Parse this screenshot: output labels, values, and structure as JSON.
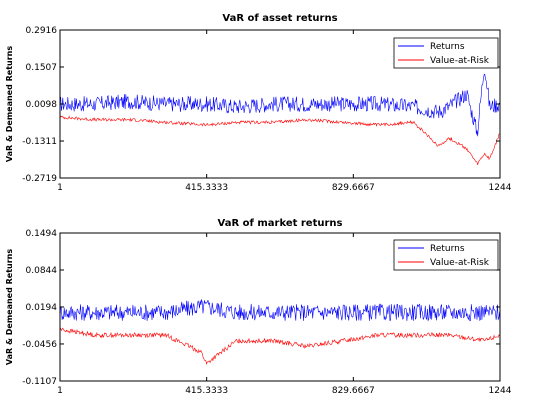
{
  "chart_data": [
    {
      "type": "line",
      "title": "VaR of asset returns",
      "ylabel": "VaR & Demeaned Returns",
      "xlabel": "",
      "xlim": [
        1,
        1244
      ],
      "ylim": [
        -0.2719,
        0.2916
      ],
      "xticks": [
        "1",
        "415.3333",
        "829.6667",
        "1244"
      ],
      "yticks": [
        "0.2916",
        "0.1507",
        "0.0098",
        "-0.1311",
        "-0.2719"
      ],
      "legend_position": "top-right",
      "series": [
        {
          "name": "Returns",
          "color": "#0000ff",
          "x": [
            1,
            100,
            200,
            300,
            415,
            500,
            600,
            700,
            800,
            900,
            1000,
            1070,
            1100,
            1150,
            1180,
            1200,
            1215,
            1244
          ],
          "values": [
            0.01,
            0.01,
            0.02,
            0.01,
            0.01,
            0.0,
            0.01,
            0.01,
            0.01,
            0.01,
            0.0,
            -0.02,
            0.0,
            0.05,
            -0.1,
            0.16,
            0.0,
            0.01
          ]
        },
        {
          "name": "Value-at-Risk",
          "color": "#ff0000",
          "x": [
            1,
            100,
            200,
            300,
            415,
            500,
            600,
            700,
            800,
            900,
            1000,
            1070,
            1100,
            1150,
            1180,
            1200,
            1215,
            1244
          ],
          "values": [
            -0.04,
            -0.05,
            -0.05,
            -0.06,
            -0.07,
            -0.06,
            -0.06,
            -0.05,
            -0.06,
            -0.07,
            -0.06,
            -0.15,
            -0.12,
            -0.16,
            -0.22,
            -0.18,
            -0.2,
            -0.1
          ]
        }
      ]
    },
    {
      "type": "line",
      "title": "VaR of market returns",
      "ylabel": "VaR & Demeaned Returns",
      "xlabel": "",
      "xlim": [
        1,
        1244
      ],
      "ylim": [
        -0.1107,
        0.1494
      ],
      "xticks": [
        "1",
        "415.3333",
        "829.6667",
        "1244"
      ],
      "yticks": [
        "0.1494",
        "0.0844",
        "0.0194",
        "-0.0456",
        "-0.1107"
      ],
      "legend_position": "top-right",
      "series": [
        {
          "name": "Returns",
          "color": "#0000ff",
          "x": [
            1,
            100,
            200,
            300,
            400,
            415,
            500,
            600,
            700,
            800,
            900,
            1000,
            1100,
            1200,
            1244
          ],
          "values": [
            0.01,
            0.01,
            0.01,
            0.01,
            0.02,
            0.02,
            0.01,
            0.01,
            0.01,
            0.01,
            0.01,
            0.01,
            0.01,
            0.01,
            0.01
          ]
        },
        {
          "name": "Value-at-Risk",
          "color": "#ff0000",
          "x": [
            1,
            100,
            200,
            300,
            400,
            415,
            500,
            600,
            700,
            800,
            900,
            1000,
            1100,
            1200,
            1244
          ],
          "values": [
            -0.02,
            -0.03,
            -0.03,
            -0.03,
            -0.06,
            -0.08,
            -0.04,
            -0.04,
            -0.05,
            -0.04,
            -0.03,
            -0.03,
            -0.03,
            -0.04,
            -0.03
          ]
        }
      ]
    }
  ]
}
